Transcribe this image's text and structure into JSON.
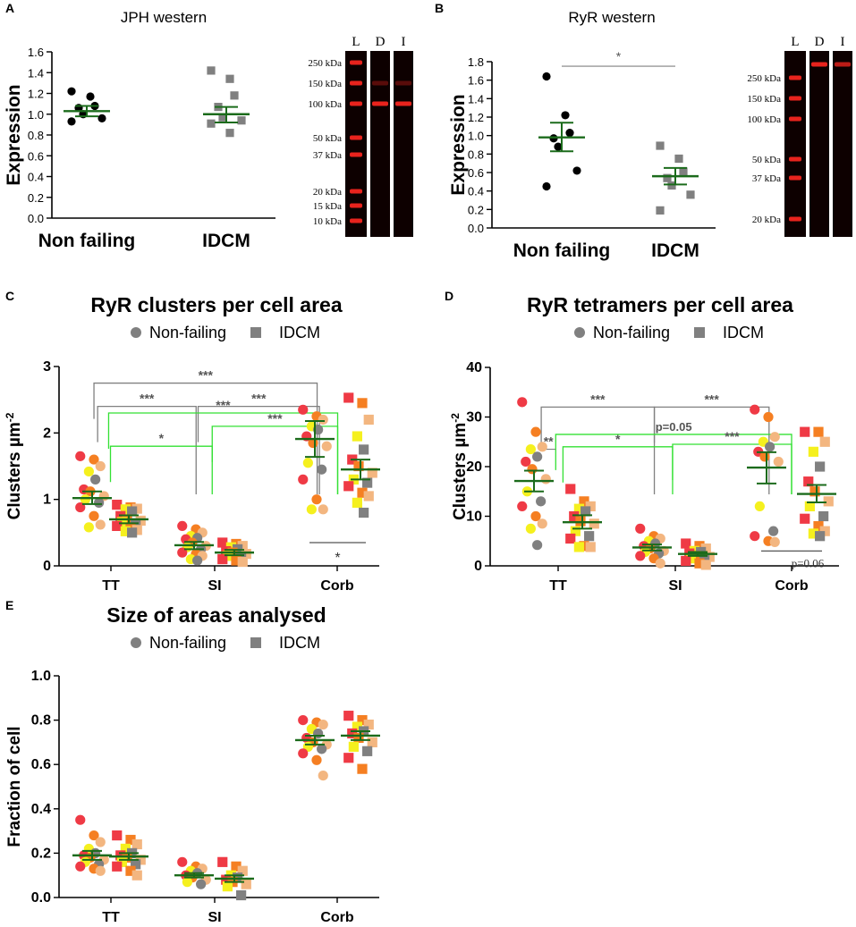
{
  "figure": {
    "colors": {
      "black": "#000000",
      "axis": "#000000",
      "gray": "#808080",
      "mean": "#1b6b1b",
      "bright_green": "#33e033",
      "red": "#ef3a45",
      "orange": "#f57f22",
      "peach": "#f3b680",
      "yellow": "#f5f01e",
      "blot_bg": "#0d0000",
      "band": "#e8231d"
    }
  },
  "chart_data": [
    {
      "panel_id": "A",
      "panel_label": "A",
      "type": "scatter",
      "title": "JPH western",
      "xlabel": "",
      "ylabel": "Expression",
      "ylim": [
        0,
        1.6
      ],
      "yticks": [
        "0.0",
        "0.2",
        "0.4",
        "0.6",
        "0.8",
        "1.0",
        "1.2",
        "1.4",
        "1.6"
      ],
      "categories": [
        "Non failing",
        "IDCM"
      ],
      "series": [
        {
          "name": "Non failing",
          "marker": "circle",
          "color": "#000000",
          "values": [
            1.22,
            1.17,
            1.08,
            1.06,
            1.0,
            0.96,
            0.93
          ],
          "mean": 1.03,
          "sem_low": 0.98,
          "sem_high": 1.08
        },
        {
          "name": "IDCM",
          "marker": "square",
          "color": "#808080",
          "values": [
            1.42,
            1.34,
            1.18,
            1.07,
            0.97,
            0.94,
            0.91,
            0.82
          ],
          "mean": 1.0,
          "sem_low": 0.92,
          "sem_high": 1.07
        }
      ]
    },
    {
      "panel_id": "B",
      "panel_label": "B",
      "type": "scatter",
      "title": "RyR western",
      "xlabel": "",
      "ylabel": "Expression",
      "ylim": [
        0,
        1.8
      ],
      "yticks": [
        "0.0",
        "0.2",
        "0.4",
        "0.6",
        "0.8",
        "1.0",
        "1.2",
        "1.4",
        "1.6",
        "1.8"
      ],
      "categories": [
        "Non failing",
        "IDCM"
      ],
      "series": [
        {
          "name": "Non failing",
          "marker": "circle",
          "color": "#000000",
          "values": [
            1.64,
            1.22,
            1.03,
            0.97,
            0.88,
            0.62,
            0.45
          ],
          "mean": 0.98,
          "sem_low": 0.83,
          "sem_high": 1.14
        },
        {
          "name": "IDCM",
          "marker": "square",
          "color": "#808080",
          "values": [
            0.89,
            0.75,
            0.61,
            0.54,
            0.46,
            0.36,
            0.19
          ],
          "mean": 0.56,
          "sem_low": 0.47,
          "sem_high": 0.65
        }
      ],
      "annotations": [
        {
          "text": "*",
          "between": [
            0,
            1
          ],
          "level": 1.78
        }
      ]
    },
    {
      "panel_id": "C",
      "panel_label": "C",
      "type": "scatter",
      "title": "RyR clusters per cell area",
      "xlabel": "",
      "ylabel": "Clusters µm",
      "ylabel_sup": "-2",
      "ylim": [
        0,
        3
      ],
      "yticks": [
        "0",
        "1",
        "2",
        "3"
      ],
      "categories": [
        "TT",
        "SI",
        "Corb"
      ],
      "legend": [
        "Non-failing",
        "IDCM"
      ],
      "groups": [
        {
          "category": 0,
          "marker": "circle",
          "mean": 1.02,
          "sem_low": 0.93,
          "sem_high": 1.12,
          "values": [
            1.65,
            1.6,
            1.5,
            1.42,
            1.3,
            1.15,
            1.12,
            1.05,
            1.0,
            0.95,
            0.88,
            0.75,
            0.62,
            0.58
          ]
        },
        {
          "category": 0,
          "marker": "square",
          "mean": 0.7,
          "sem_low": 0.64,
          "sem_high": 0.76,
          "values": [
            0.92,
            0.88,
            0.86,
            0.85,
            0.82,
            0.75,
            0.7,
            0.68,
            0.66,
            0.64,
            0.6,
            0.56,
            0.54,
            0.52,
            0.5
          ]
        },
        {
          "category": 1,
          "marker": "circle",
          "mean": 0.31,
          "sem_low": 0.25,
          "sem_high": 0.36,
          "values": [
            0.6,
            0.55,
            0.5,
            0.45,
            0.42,
            0.4,
            0.35,
            0.3,
            0.28,
            0.25,
            0.2,
            0.18,
            0.15,
            0.1,
            0.08
          ]
        },
        {
          "category": 1,
          "marker": "square",
          "mean": 0.2,
          "sem_low": 0.16,
          "sem_high": 0.24,
          "values": [
            0.35,
            0.33,
            0.3,
            0.28,
            0.25,
            0.22,
            0.2,
            0.18,
            0.15,
            0.12,
            0.1,
            0.08,
            0.06
          ]
        },
        {
          "category": 2,
          "marker": "circle",
          "mean": 1.91,
          "sem_low": 1.64,
          "sem_high": 2.18,
          "values": [
            2.35,
            2.25,
            2.2,
            2.1,
            2.05,
            1.95,
            1.85,
            1.8,
            1.55,
            1.45,
            1.3,
            1.0,
            0.85,
            0.85
          ]
        },
        {
          "category": 2,
          "marker": "square",
          "mean": 1.45,
          "sem_low": 1.3,
          "sem_high": 1.6,
          "values": [
            2.53,
            2.45,
            2.2,
            1.95,
            1.75,
            1.6,
            1.5,
            1.4,
            1.3,
            1.25,
            1.2,
            1.1,
            1.05,
            0.95,
            0.8
          ]
        }
      ],
      "brackets": [
        {
          "from": 0.05,
          "to": 2.05,
          "y": 2.75,
          "text": "***",
          "color": "gray"
        },
        {
          "from": 0.15,
          "to": 1.05,
          "y": 2.4,
          "text": "***",
          "color": "gray"
        },
        {
          "from": 1.1,
          "to": 2.1,
          "y": 2.4,
          "text": "***",
          "color": "gray"
        },
        {
          "from": 0.45,
          "to": 2.5,
          "y": 2.3,
          "text": "***",
          "color": "green"
        },
        {
          "from": 0.5,
          "to": 1.45,
          "y": 1.8,
          "text": "*",
          "color": "green"
        },
        {
          "from": 1.45,
          "to": 2.5,
          "y": 2.1,
          "text": "***",
          "color": "green"
        }
      ],
      "annotations": [
        {
          "text": "*",
          "between": [
            1.95,
            2.5
          ],
          "y": 0.35
        }
      ]
    },
    {
      "panel_id": "D",
      "panel_label": "D",
      "type": "scatter",
      "title": "RyR tetramers per cell area",
      "xlabel": "",
      "ylabel": "Clusters µm",
      "ylabel_sup": "-2",
      "ylim": [
        0,
        40
      ],
      "yticks": [
        "0",
        "10",
        "20",
        "30",
        "40"
      ],
      "categories": [
        "TT",
        "SI",
        "Corb"
      ],
      "legend": [
        "Non-failing",
        "IDCM"
      ],
      "groups": [
        {
          "category": 0,
          "marker": "circle",
          "mean": 17.1,
          "sem_low": 15.0,
          "sem_high": 19.2,
          "values": [
            33,
            27,
            24,
            23.5,
            22,
            21,
            19.5,
            17.5,
            15,
            13,
            12,
            10,
            8.5,
            7.5,
            4.2
          ]
        },
        {
          "category": 0,
          "marker": "square",
          "mean": 8.8,
          "sem_low": 7.5,
          "sem_high": 10.2,
          "values": [
            15.5,
            13,
            12,
            11.5,
            11,
            10,
            9,
            8.5,
            7,
            6,
            5.5,
            4,
            3.8,
            3.8
          ]
        },
        {
          "category": 1,
          "marker": "circle",
          "mean": 3.7,
          "sem_low": 3.1,
          "sem_high": 4.3,
          "values": [
            7.5,
            6,
            5.5,
            5,
            4.5,
            4,
            3.5,
            3,
            2.8,
            2.5,
            2,
            1.5,
            0.5
          ]
        },
        {
          "category": 1,
          "marker": "square",
          "mean": 2.4,
          "sem_low": 2.0,
          "sem_high": 2.8,
          "values": [
            4.5,
            4,
            3.5,
            3,
            2.8,
            2.5,
            2,
            1.8,
            1.5,
            1.2,
            1,
            0.5,
            0.2
          ]
        },
        {
          "category": 2,
          "marker": "circle",
          "mean": 19.8,
          "sem_low": 16.6,
          "sem_high": 22.9,
          "values": [
            31.5,
            30,
            26,
            25,
            24,
            23,
            22,
            21,
            12,
            7,
            6,
            5,
            4.8
          ]
        },
        {
          "category": 2,
          "marker": "square",
          "mean": 14.5,
          "sem_low": 12.8,
          "sem_high": 16.3,
          "values": [
            27,
            27,
            25,
            23,
            20,
            17,
            15,
            13,
            12,
            10,
            9.5,
            8,
            7,
            6.5,
            6
          ]
        }
      ],
      "brackets": [
        {
          "from": 0.15,
          "to": 1.05,
          "y": 32,
          "text": "***",
          "color": "gray"
        },
        {
          "from": 1.05,
          "to": 2.05,
          "y": 32,
          "text": "***",
          "color": "gray"
        },
        {
          "from": 0.15,
          "to": 0.45,
          "y": 23.5,
          "text": "**",
          "color": "gray",
          "flat": true
        },
        {
          "from": 0.45,
          "to": 2.5,
          "y": 26.5,
          "text": "p=0.05",
          "color": "green"
        },
        {
          "from": 0.6,
          "to": 1.45,
          "y": 24,
          "text": "*",
          "color": "green"
        },
        {
          "from": 1.45,
          "to": 2.5,
          "y": 24.5,
          "text": "***",
          "color": "green"
        }
      ],
      "annotations": [
        {
          "text": "p=0.06",
          "between": [
            1.95,
            2.5
          ],
          "y": 3.0
        }
      ]
    },
    {
      "panel_id": "E",
      "panel_label": "E",
      "type": "scatter",
      "title": "Size of areas analysed",
      "xlabel": "",
      "ylabel": "Fraction of cell",
      "ylim": [
        0,
        1.0
      ],
      "yticks": [
        "0.0",
        "0.2",
        "0.4",
        "0.6",
        "0.8",
        "1.0"
      ],
      "categories": [
        "TT",
        "SI",
        "Corb"
      ],
      "legend": [
        "Non-failing",
        "IDCM"
      ],
      "groups": [
        {
          "category": 0,
          "marker": "circle",
          "mean": 0.19,
          "sem_low": 0.17,
          "sem_high": 0.21,
          "values": [
            0.35,
            0.28,
            0.25,
            0.22,
            0.2,
            0.19,
            0.18,
            0.17,
            0.16,
            0.15,
            0.14,
            0.13,
            0.12
          ]
        },
        {
          "category": 0,
          "marker": "square",
          "mean": 0.185,
          "sem_low": 0.17,
          "sem_high": 0.2,
          "values": [
            0.28,
            0.26,
            0.24,
            0.22,
            0.2,
            0.19,
            0.18,
            0.17,
            0.16,
            0.15,
            0.14,
            0.12,
            0.1
          ]
        },
        {
          "category": 1,
          "marker": "circle",
          "mean": 0.1,
          "sem_low": 0.09,
          "sem_high": 0.11,
          "values": [
            0.16,
            0.14,
            0.13,
            0.12,
            0.11,
            0.1,
            0.09,
            0.08,
            0.07,
            0.06
          ]
        },
        {
          "category": 1,
          "marker": "square",
          "mean": 0.085,
          "sem_low": 0.07,
          "sem_high": 0.1,
          "values": [
            0.16,
            0.14,
            0.12,
            0.1,
            0.09,
            0.08,
            0.07,
            0.06,
            0.05,
            0.01
          ]
        },
        {
          "category": 2,
          "marker": "circle",
          "mean": 0.71,
          "sem_low": 0.69,
          "sem_high": 0.73,
          "values": [
            0.8,
            0.79,
            0.78,
            0.76,
            0.74,
            0.72,
            0.7,
            0.69,
            0.68,
            0.67,
            0.65,
            0.62,
            0.55
          ]
        },
        {
          "category": 2,
          "marker": "square",
          "mean": 0.73,
          "sem_low": 0.71,
          "sem_high": 0.75,
          "values": [
            0.82,
            0.8,
            0.78,
            0.77,
            0.75,
            0.74,
            0.72,
            0.7,
            0.68,
            0.66,
            0.63,
            0.58
          ]
        }
      ]
    }
  ],
  "blots": [
    {
      "panel_id": "A",
      "lane_labels": [
        "L",
        "D",
        "I"
      ],
      "ladder_labels": [
        "250 kDa",
        "150 kDa",
        "100 kDa",
        "50 kDa",
        "37 kDa",
        "20 kDa",
        "15 kDa",
        "10 kDa"
      ]
    },
    {
      "panel_id": "B",
      "lane_labels": [
        "L",
        "D",
        "I"
      ],
      "ladder_labels": [
        "250 kDa",
        "150 kDa",
        "100 kDa",
        "50 kDa",
        "37 kDa",
        "20 kDa"
      ]
    }
  ]
}
